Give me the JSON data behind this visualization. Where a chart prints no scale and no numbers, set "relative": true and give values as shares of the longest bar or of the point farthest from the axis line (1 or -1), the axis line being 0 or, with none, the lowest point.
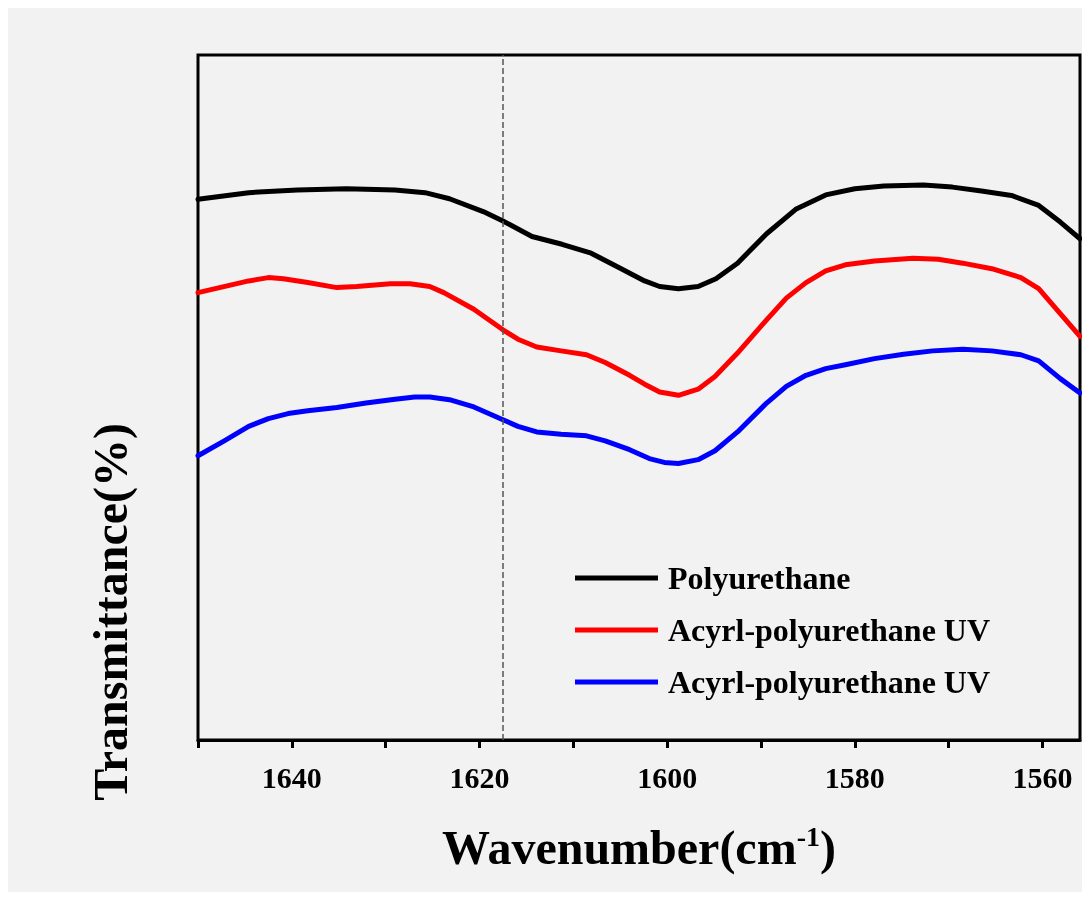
{
  "chart_data": {
    "type": "line",
    "xlabel": "Wavenumber(cm$^{-1}$)",
    "ylabel": "Transmittance(%)",
    "relative": true,
    "xlim": [
      1650,
      1556
    ],
    "xticks": [
      {
        "value": 1650,
        "label": null
      },
      1640,
      {
        "value": 1630,
        "label": null
      },
      1620,
      {
        "value": 1610,
        "label": null
      },
      1600,
      {
        "value": 1590,
        "label": null
      },
      1580,
      {
        "value": 1570,
        "label": null
      },
      1560
    ],
    "grid": false,
    "legend": "bottom right",
    "line_style": "solid",
    "marker": "none",
    "ref_lines": [
      {
        "axis": "x",
        "value": 1617.5,
        "color": "#555555",
        "line_style": "dashed"
      }
    ],
    "series": [
      {
        "name": "Polyurethane",
        "color": "#000000",
        "x": [
          1650,
          1644.6,
          1639.4,
          1634.2,
          1629,
          1625.8,
          1623.2,
          1619.6,
          1617.5,
          1614.4,
          1611.2,
          1608.1,
          1605,
          1602.4,
          1600.8,
          1598.8,
          1596.7,
          1594.8,
          1592.5,
          1589.4,
          1586.3,
          1583.1,
          1580,
          1576.9,
          1572.7,
          1569.6,
          1566.5,
          1563.3,
          1560.4,
          1558.1,
          1556
        ],
        "values": [
          0.974,
          0.986,
          0.991,
          0.993,
          0.991,
          0.986,
          0.975,
          0.952,
          0.935,
          0.907,
          0.893,
          0.877,
          0.85,
          0.827,
          0.817,
          0.813,
          0.817,
          0.831,
          0.859,
          0.912,
          0.956,
          0.982,
          0.993,
          0.998,
          1,
          0.996,
          0.989,
          0.981,
          0.963,
          0.933,
          0.903
        ]
      },
      {
        "name": "Acyrl-polyurethane UV",
        "color": "#ff0000",
        "x": [
          1650,
          1644.6,
          1642.5,
          1640.9,
          1638.3,
          1635.2,
          1633.1,
          1629.5,
          1627.4,
          1625.3,
          1623.8,
          1620.6,
          1617.5,
          1615.9,
          1613.9,
          1611.3,
          1608.6,
          1606.6,
          1604,
          1602.4,
          1600.8,
          1598.8,
          1596.7,
          1594.9,
          1592.5,
          1589.4,
          1587.3,
          1585.2,
          1583.1,
          1581,
          1577.9,
          1573.8,
          1571.1,
          1568.5,
          1565.4,
          1562.3,
          1560.4,
          1558.1,
          1556
        ],
        "values": [
          0.806,
          0.827,
          0.833,
          0.831,
          0.824,
          0.815,
          0.817,
          0.822,
          0.822,
          0.817,
          0.806,
          0.776,
          0.739,
          0.722,
          0.708,
          0.701,
          0.694,
          0.68,
          0.657,
          0.641,
          0.627,
          0.621,
          0.632,
          0.655,
          0.697,
          0.757,
          0.796,
          0.824,
          0.845,
          0.856,
          0.863,
          0.868,
          0.866,
          0.859,
          0.849,
          0.833,
          0.813,
          0.768,
          0.727
        ]
      },
      {
        "name": "Acyrl-polyurethane UV",
        "color": "#0000ff",
        "x": [
          1650,
          1647.2,
          1644.6,
          1642.5,
          1640.4,
          1638.3,
          1635.2,
          1632.1,
          1629,
          1626.9,
          1625.3,
          1623.2,
          1620.6,
          1617.5,
          1615.9,
          1613.9,
          1611.3,
          1608.6,
          1606.6,
          1604,
          1601.9,
          1600.3,
          1598.8,
          1596.7,
          1594.9,
          1592.5,
          1589.4,
          1587.3,
          1585.2,
          1583.1,
          1581,
          1577.9,
          1574.8,
          1571.7,
          1568.5,
          1565.4,
          1562.3,
          1560.4,
          1558.1,
          1556
        ],
        "values": [
          0.512,
          0.539,
          0.565,
          0.579,
          0.588,
          0.593,
          0.599,
          0.607,
          0.614,
          0.618,
          0.618,
          0.613,
          0.6,
          0.577,
          0.565,
          0.555,
          0.551,
          0.548,
          0.539,
          0.523,
          0.507,
          0.5,
          0.498,
          0.505,
          0.521,
          0.555,
          0.607,
          0.637,
          0.657,
          0.669,
          0.676,
          0.687,
          0.695,
          0.701,
          0.704,
          0.701,
          0.694,
          0.683,
          0.651,
          0.625
        ]
      }
    ]
  }
}
